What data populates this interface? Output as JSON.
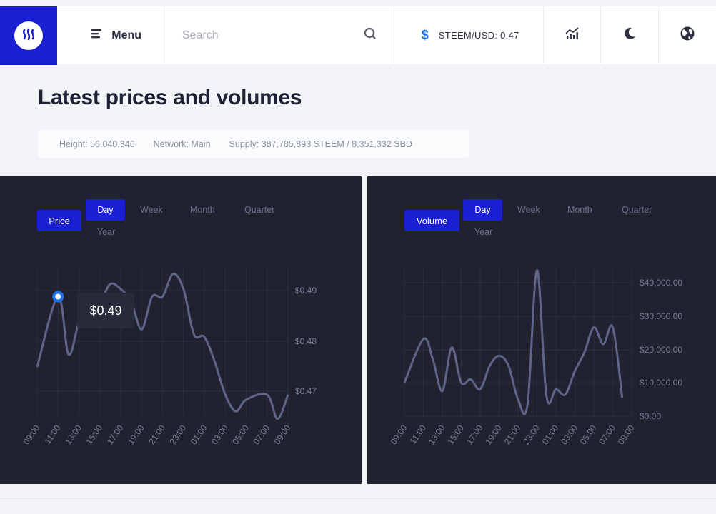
{
  "header": {
    "menu_label": "Menu",
    "search_placeholder": "Search",
    "ticker": "STEEM/USD: 0.47"
  },
  "page": {
    "title": "Latest prices and volumes",
    "stats": {
      "height": "Height: 56,040,346",
      "network": "Network: Main",
      "supply": "Supply: 387,785,893 STEEM / 8,351,332 SBD"
    }
  },
  "tabs": {
    "day": "Day",
    "week": "Week",
    "month": "Month",
    "quarter": "Quarter",
    "year": "Year"
  },
  "price_panel": {
    "kind_label": "Price",
    "tooltip": "$0.49",
    "active_range": "Day"
  },
  "volume_panel": {
    "kind_label": "Volume",
    "active_range": "Day"
  },
  "colors": {
    "brand": "#1a1fd1",
    "panel_bg": "#20222f",
    "line": "#5e6588",
    "grid": "#2c2f3f",
    "accent": "#1a73e8"
  },
  "chart_data": [
    {
      "type": "line",
      "title": "Price",
      "x": [
        "09:00",
        "11:00",
        "13:00",
        "15:00",
        "17:00",
        "19:00",
        "21:00",
        "23:00",
        "01:00",
        "03:00",
        "05:00",
        "07:00",
        "09:00"
      ],
      "y_ticks": [
        "$0.49",
        "$0.48",
        "$0.47"
      ],
      "series": [
        {
          "name": "Price",
          "points": [
            [
              0,
              0.4748
            ],
            [
              1,
              0.4888
            ],
            [
              1.5,
              0.4773
            ],
            [
              2,
              0.4838
            ],
            [
              2.5,
              0.4883
            ],
            [
              3,
              0.4878
            ],
            [
              3.5,
              0.4913
            ],
            [
              4,
              0.4903
            ],
            [
              4.5,
              0.4878
            ],
            [
              5,
              0.4823
            ],
            [
              5.5,
              0.4888
            ],
            [
              6,
              0.4888
            ],
            [
              6.5,
              0.4933
            ],
            [
              7,
              0.4903
            ],
            [
              7.5,
              0.4813
            ],
            [
              8,
              0.4808
            ],
            [
              8.5,
              0.4758
            ],
            [
              9,
              0.4693
            ],
            [
              9.5,
              0.466
            ],
            [
              10,
              0.4683
            ],
            [
              11,
              0.4693
            ],
            [
              11.5,
              0.4645
            ],
            [
              12,
              0.4693
            ]
          ]
        }
      ],
      "highlight": {
        "x": "11:00",
        "label": "$0.49"
      }
    },
    {
      "type": "line",
      "title": "Volume",
      "x": [
        "09:00",
        "11:00",
        "13:00",
        "15:00",
        "17:00",
        "19:00",
        "21:00",
        "23:00",
        "01:00",
        "03:00",
        "05:00",
        "07:00",
        "09:00"
      ],
      "y_ticks": [
        "$40,000.00",
        "$30,000.00",
        "$20,000.00",
        "$10,000.00",
        "$0.00"
      ],
      "series": [
        {
          "name": "Volume",
          "points": [
            [
              0,
              10000
            ],
            [
              1,
              23000
            ],
            [
              1.5,
              17000
            ],
            [
              2,
              7500
            ],
            [
              2.5,
              20500
            ],
            [
              3,
              10000
            ],
            [
              3.5,
              11000
            ],
            [
              4,
              8000
            ],
            [
              4.5,
              15000
            ],
            [
              5,
              18000
            ],
            [
              5.5,
              15000
            ],
            [
              6,
              5000
            ],
            [
              6.5,
              3500
            ],
            [
              7,
              43500
            ],
            [
              7.5,
              6000
            ],
            [
              8,
              8000
            ],
            [
              8.5,
              6500
            ],
            [
              9,
              13500
            ],
            [
              9.5,
              19000
            ],
            [
              10,
              26500
            ],
            [
              10.5,
              21500
            ],
            [
              11,
              26500
            ],
            [
              11.5,
              5500
            ]
          ]
        }
      ]
    }
  ]
}
